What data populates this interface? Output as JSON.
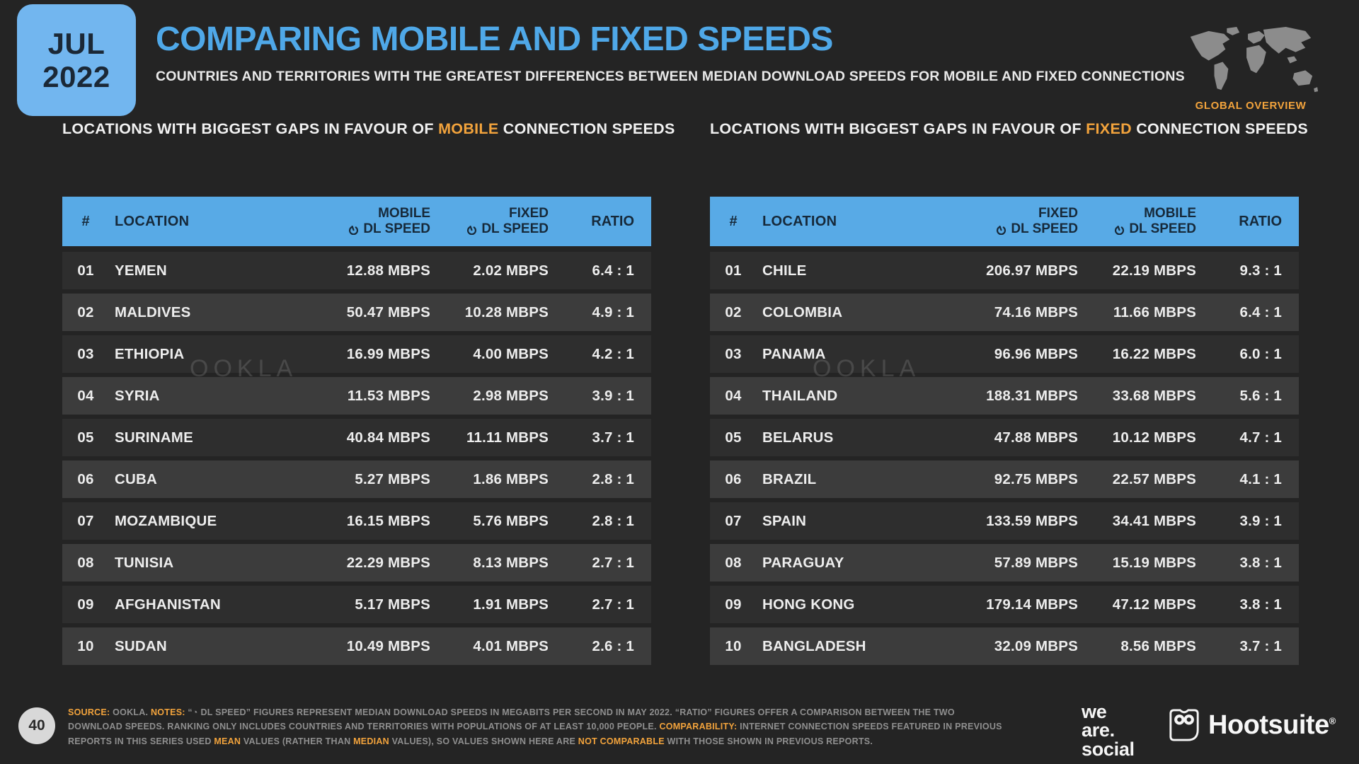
{
  "meta": {
    "month": "JUL",
    "year": "2022",
    "page_number": "40"
  },
  "colors": {
    "background": "#242424",
    "accent_blue": "#58AAE6",
    "badge_blue": "#72B6EF",
    "title_blue": "#4FA8E8",
    "accent_orange": "#F2A33C",
    "row_dark": "#2E2E2E",
    "row_light": "#3C3C3C",
    "table_header_text": "#16293A",
    "footer_text": "#8F8F8F",
    "map_gray": "#8C8C8C",
    "page_circle": "#D8D8D8"
  },
  "header": {
    "title": "COMPARING MOBILE AND FIXED SPEEDS",
    "subtitle": "COUNTRIES AND TERRITORIES WITH THE GREATEST DIFFERENCES BETWEEN MEDIAN DOWNLOAD SPEEDS FOR MOBILE AND FIXED CONNECTIONS",
    "map_label": "GLOBAL OVERVIEW"
  },
  "watermark": "OOKLA",
  "tables": {
    "mobile": {
      "caption_prefix": "LOCATIONS WITH BIGGEST GAPS IN FAVOUR OF ",
      "caption_highlight": "MOBILE",
      "caption_suffix": " CONNECTION SPEEDS",
      "columns": {
        "rank": "#",
        "location": "LOCATION",
        "speed1": "MOBILE",
        "speed2": "FIXED",
        "dl_speed": "DL SPEED",
        "ratio": "RATIO"
      },
      "rows": [
        {
          "rank": "01",
          "location": "YEMEN",
          "speed1": "12.88 MBPS",
          "speed2": "2.02 MBPS",
          "ratio": "6.4 : 1"
        },
        {
          "rank": "02",
          "location": "MALDIVES",
          "speed1": "50.47 MBPS",
          "speed2": "10.28 MBPS",
          "ratio": "4.9 : 1"
        },
        {
          "rank": "03",
          "location": "ETHIOPIA",
          "speed1": "16.99 MBPS",
          "speed2": "4.00 MBPS",
          "ratio": "4.2 : 1"
        },
        {
          "rank": "04",
          "location": "SYRIA",
          "speed1": "11.53 MBPS",
          "speed2": "2.98 MBPS",
          "ratio": "3.9 : 1"
        },
        {
          "rank": "05",
          "location": "SURINAME",
          "speed1": "40.84 MBPS",
          "speed2": "11.11 MBPS",
          "ratio": "3.7 : 1"
        },
        {
          "rank": "06",
          "location": "CUBA",
          "speed1": "5.27 MBPS",
          "speed2": "1.86 MBPS",
          "ratio": "2.8 : 1"
        },
        {
          "rank": "07",
          "location": "MOZAMBIQUE",
          "speed1": "16.15 MBPS",
          "speed2": "5.76 MBPS",
          "ratio": "2.8 : 1"
        },
        {
          "rank": "08",
          "location": "TUNISIA",
          "speed1": "22.29 MBPS",
          "speed2": "8.13 MBPS",
          "ratio": "2.7 : 1"
        },
        {
          "rank": "09",
          "location": "AFGHANISTAN",
          "speed1": "5.17 MBPS",
          "speed2": "1.91 MBPS",
          "ratio": "2.7 : 1"
        },
        {
          "rank": "10",
          "location": "SUDAN",
          "speed1": "10.49 MBPS",
          "speed2": "4.01 MBPS",
          "ratio": "2.6 : 1"
        }
      ]
    },
    "fixed": {
      "caption_prefix": "LOCATIONS WITH BIGGEST GAPS IN FAVOUR OF ",
      "caption_highlight": "FIXED",
      "caption_suffix": " CONNECTION SPEEDS",
      "columns": {
        "rank": "#",
        "location": "LOCATION",
        "speed1": "FIXED",
        "speed2": "MOBILE",
        "dl_speed": "DL SPEED",
        "ratio": "RATIO"
      },
      "rows": [
        {
          "rank": "01",
          "location": "CHILE",
          "speed1": "206.97 MBPS",
          "speed2": "22.19 MBPS",
          "ratio": "9.3 : 1"
        },
        {
          "rank": "02",
          "location": "COLOMBIA",
          "speed1": "74.16 MBPS",
          "speed2": "11.66 MBPS",
          "ratio": "6.4 : 1"
        },
        {
          "rank": "03",
          "location": "PANAMA",
          "speed1": "96.96 MBPS",
          "speed2": "16.22 MBPS",
          "ratio": "6.0 : 1"
        },
        {
          "rank": "04",
          "location": "THAILAND",
          "speed1": "188.31 MBPS",
          "speed2": "33.68 MBPS",
          "ratio": "5.6 : 1"
        },
        {
          "rank": "05",
          "location": "BELARUS",
          "speed1": "47.88 MBPS",
          "speed2": "10.12 MBPS",
          "ratio": "4.7 : 1"
        },
        {
          "rank": "06",
          "location": "BRAZIL",
          "speed1": "92.75 MBPS",
          "speed2": "22.57 MBPS",
          "ratio": "4.1 : 1"
        },
        {
          "rank": "07",
          "location": "SPAIN",
          "speed1": "133.59 MBPS",
          "speed2": "34.41 MBPS",
          "ratio": "3.9 : 1"
        },
        {
          "rank": "08",
          "location": "PARAGUAY",
          "speed1": "57.89 MBPS",
          "speed2": "15.19 MBPS",
          "ratio": "3.8 : 1"
        },
        {
          "rank": "09",
          "location": "HONG KONG",
          "speed1": "179.14 MBPS",
          "speed2": "47.12 MBPS",
          "ratio": "3.8 : 1"
        },
        {
          "rank": "10",
          "location": "BANGLADESH",
          "speed1": "32.09 MBPS",
          "speed2": "8.56 MBPS",
          "ratio": "3.7 : 1"
        }
      ]
    }
  },
  "footer": {
    "lines": [
      [
        {
          "t": "SOURCE:",
          "h": true
        },
        {
          "t": " OOKLA. ",
          "h": false
        },
        {
          "t": "NOTES:",
          "h": true
        },
        {
          "t": " “◔ DL SPEED” FIGURES REPRESENT MEDIAN DOWNLOAD SPEEDS IN MEGABITS PER SECOND IN MAY 2022. “RATIO” FIGURES OFFER A COMPARISON BETWEEN THE TWO",
          "h": false
        }
      ],
      [
        {
          "t": "DOWNLOAD SPEEDS. RANKING ONLY INCLUDES COUNTRIES AND TERRITORIES WITH POPULATIONS OF AT LEAST 10,000 PEOPLE. ",
          "h": false
        },
        {
          "t": "COMPARABILITY:",
          "h": true
        },
        {
          "t": " INTERNET CONNECTION SPEEDS FEATURED IN PREVIOUS",
          "h": false
        }
      ],
      [
        {
          "t": "REPORTS IN THIS SERIES USED ",
          "h": false
        },
        {
          "t": "MEAN",
          "h": true
        },
        {
          "t": " VALUES (RATHER THAN ",
          "h": false
        },
        {
          "t": "MEDIAN",
          "h": true
        },
        {
          "t": " VALUES), SO VALUES SHOWN HERE ARE ",
          "h": false
        },
        {
          "t": "NOT COMPARABLE",
          "h": true
        },
        {
          "t": " WITH THOSE SHOWN IN PREVIOUS REPORTS.",
          "h": false
        }
      ]
    ],
    "wearesocial_lines": [
      "we",
      "are.",
      "social"
    ],
    "hootsuite_label": "Hootsuite",
    "hootsuite_reg": "®"
  }
}
